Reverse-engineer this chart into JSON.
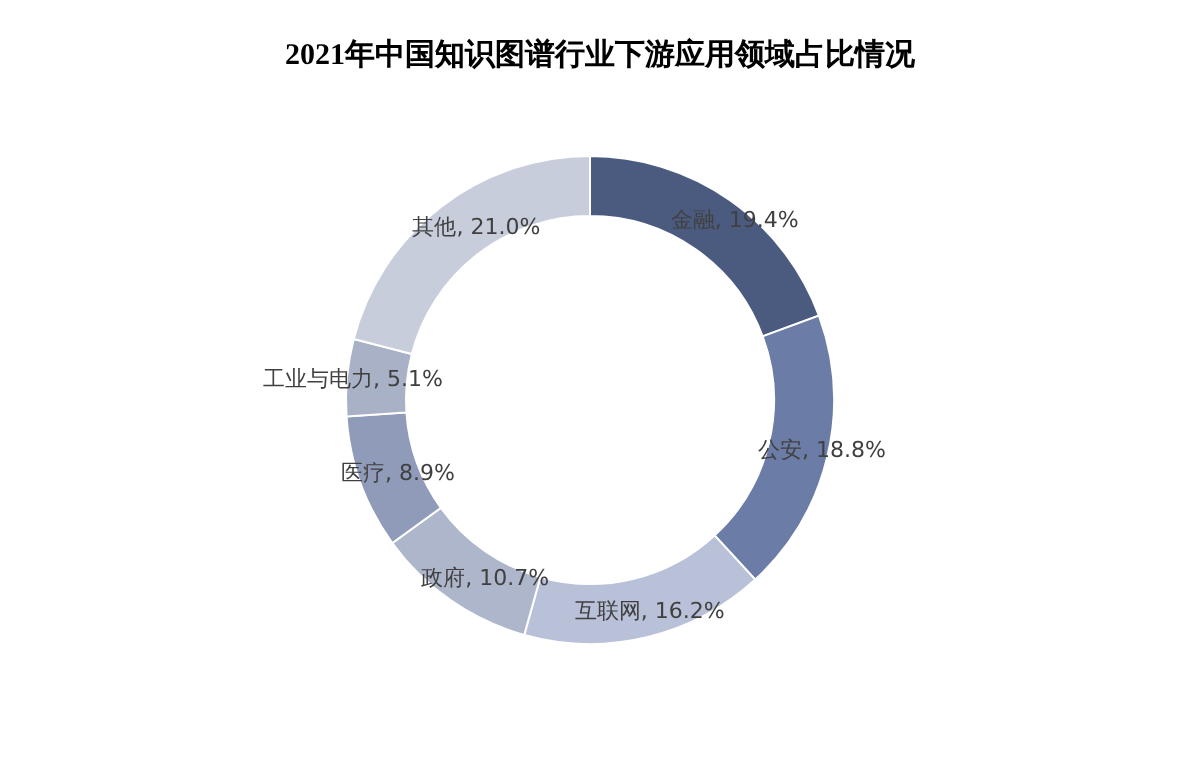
{
  "chart_data": {
    "type": "donut",
    "title": "2021年中国知识图谱行业下游应用领域占比情况",
    "categories": [
      "金融",
      "公安",
      "互联网",
      "政府",
      "医疗",
      "工业与电力",
      "其他"
    ],
    "values": [
      19.4,
      18.8,
      16.2,
      10.7,
      8.9,
      5.1,
      21.0
    ],
    "colors": [
      "#4b5b80",
      "#6b7ca6",
      "#b9c1d8",
      "#aeb6cb",
      "#8f9bb8",
      "#a8b1c6",
      "#c8cddb"
    ],
    "value_labels": [
      ", 19.4%",
      ", 18.8%",
      ", 16.2%",
      ", 10.7%",
      ", 8.9%",
      ", 5.1%",
      ", 21.0%"
    ]
  }
}
